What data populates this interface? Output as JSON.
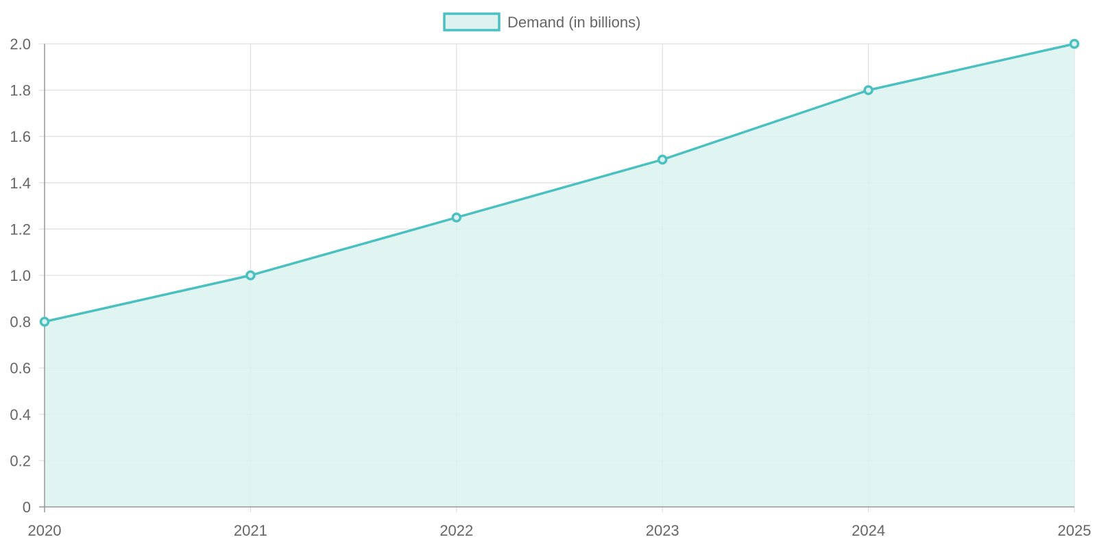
{
  "chart_data": {
    "type": "area",
    "categories": [
      "2020",
      "2021",
      "2022",
      "2023",
      "2024",
      "2025"
    ],
    "series": [
      {
        "name": "Demand (in billions)",
        "values": [
          0.8,
          1.0,
          1.25,
          1.5,
          1.8,
          2.0
        ]
      }
    ],
    "y_ticks": [
      "0",
      "0.2",
      "0.4",
      "0.6",
      "0.8",
      "1.0",
      "1.2",
      "1.4",
      "1.6",
      "1.8",
      "2.0"
    ],
    "ylim": [
      0,
      2.0
    ],
    "grid": true,
    "legend_position": "top",
    "colors": {
      "line": "#4bc0c0",
      "fill": "#dbf2f0",
      "grid": "#e0e0e0",
      "axis": "#999999",
      "text": "#666666"
    }
  }
}
